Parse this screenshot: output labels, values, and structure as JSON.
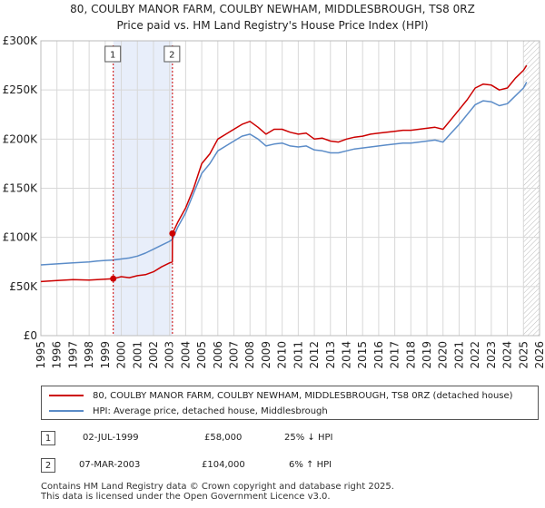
{
  "header": {
    "title_line1": "80, COULBY MANOR FARM, COULBY NEWHAM, MIDDLESBROUGH, TS8 0RZ",
    "title_line2": "Price paid vs. HM Land Registry's House Price Index (HPI)"
  },
  "colors": {
    "price_line": "#cc0000",
    "hpi_line": "#5b8cc8",
    "highlight": "#e8eefa",
    "grid": "#d8d8d8"
  },
  "chart_data": {
    "type": "line",
    "title": "80, COULBY MANOR FARM, COULBY NEWHAM, MIDDLESBROUGH, TS8 0RZ",
    "subtitle": "Price paid vs. HM Land Registry's House Price Index (HPI)",
    "xlim": [
      1995,
      2026
    ],
    "ylim": [
      0,
      300000
    ],
    "y_ticks": [
      0,
      50000,
      100000,
      150000,
      200000,
      250000,
      300000
    ],
    "y_tick_labels": [
      "£0",
      "£50K",
      "£100K",
      "£150K",
      "£200K",
      "£250K",
      "£300K"
    ],
    "x_ticks": [
      1995,
      1996,
      1997,
      1998,
      1999,
      2000,
      2001,
      2002,
      2003,
      2004,
      2005,
      2006,
      2007,
      2008,
      2009,
      2010,
      2011,
      2012,
      2013,
      2014,
      2015,
      2016,
      2017,
      2018,
      2019,
      2020,
      2021,
      2022,
      2023,
      2024,
      2025,
      2026
    ],
    "grid": true,
    "highlight_span": [
      1999.5,
      2003.18
    ],
    "hatched_from": 2025.0,
    "series": [
      {
        "name": "80, COULBY MANOR FARM, COULBY NEWHAM, MIDDLESBROUGH, TS8 0RZ (detached house)",
        "color": "#cc0000",
        "x": [
          1995,
          1996,
          1997,
          1998,
          1998.5,
          1999,
          1999.5,
          2000,
          2000.5,
          2001,
          2001.5,
          2002,
          2002.5,
          2003.0,
          2003.17,
          2003.18,
          2003.5,
          2004,
          2004.5,
          2005,
          2005.5,
          2006,
          2006.5,
          2007,
          2007.5,
          2008,
          2008.5,
          2009,
          2009.5,
          2010,
          2010.5,
          2011,
          2011.5,
          2012,
          2012.5,
          2013,
          2013.5,
          2014,
          2014.5,
          2015,
          2015.5,
          2016,
          2016.5,
          2017,
          2017.5,
          2018,
          2018.5,
          2019,
          2019.5,
          2020,
          2020.5,
          2021,
          2021.5,
          2022,
          2022.5,
          2023,
          2023.5,
          2024,
          2024.5,
          2025,
          2025.2
        ],
        "values": [
          55000,
          56000,
          57000,
          56500,
          57000,
          57500,
          58000,
          60000,
          59000,
          61000,
          62000,
          65000,
          70000,
          74000,
          75000,
          104000,
          115000,
          130000,
          150000,
          175000,
          185000,
          200000,
          205000,
          210000,
          215000,
          218000,
          212000,
          205000,
          210000,
          210000,
          207000,
          205000,
          206000,
          200000,
          201000,
          198000,
          197000,
          200000,
          202000,
          203000,
          205000,
          206000,
          207000,
          208000,
          209000,
          209000,
          210000,
          211000,
          212000,
          210000,
          220000,
          230000,
          240000,
          252000,
          256000,
          255000,
          250000,
          252000,
          262000,
          270000,
          275000
        ]
      },
      {
        "name": "HPI: Average price, detached house, Middlesbrough",
        "color": "#5b8cc8",
        "x": [
          1995,
          1996,
          1997,
          1998,
          1998.5,
          1999,
          1999.5,
          2000,
          2000.5,
          2001,
          2001.5,
          2002,
          2002.5,
          2003.0,
          2003.18,
          2003.5,
          2004,
          2004.5,
          2005,
          2005.5,
          2006,
          2006.5,
          2007,
          2007.5,
          2008,
          2008.5,
          2009,
          2009.5,
          2010,
          2010.5,
          2011,
          2011.5,
          2012,
          2012.5,
          2013,
          2013.5,
          2014,
          2014.5,
          2015,
          2015.5,
          2016,
          2016.5,
          2017,
          2017.5,
          2018,
          2018.5,
          2019,
          2019.5,
          2020,
          2020.5,
          2021,
          2021.5,
          2022,
          2022.5,
          2023,
          2023.5,
          2024,
          2024.5,
          2025,
          2025.2
        ],
        "values": [
          72000,
          73000,
          74000,
          75000,
          76000,
          76500,
          77000,
          78000,
          79000,
          81000,
          84000,
          88000,
          92000,
          96000,
          98000,
          110000,
          125000,
          145000,
          165000,
          175000,
          188000,
          193000,
          198000,
          203000,
          205000,
          200000,
          193000,
          195000,
          196000,
          193000,
          192000,
          193000,
          189000,
          188000,
          186000,
          186000,
          188000,
          190000,
          191000,
          192000,
          193000,
          194000,
          195000,
          196000,
          196000,
          197000,
          198000,
          199000,
          197000,
          206000,
          215000,
          225000,
          235000,
          239000,
          238000,
          234000,
          236000,
          244000,
          252000,
          258000
        ]
      }
    ],
    "markers": [
      {
        "label": "1",
        "x": 1999.5,
        "y": 58000
      },
      {
        "label": "2",
        "x": 2003.18,
        "y": 104000
      }
    ]
  },
  "legend": {
    "price_label": "80, COULBY MANOR FARM, COULBY NEWHAM, MIDDLESBROUGH, TS8 0RZ (detached house)",
    "hpi_label": "HPI: Average price, detached house, Middlesbrough"
  },
  "transactions": [
    {
      "num": "1",
      "date": "02-JUL-1999",
      "price": "£58,000",
      "hpi": "25% ↓ HPI"
    },
    {
      "num": "2",
      "date": "07-MAR-2003",
      "price": "£104,000",
      "hpi": "6% ↑ HPI"
    }
  ],
  "footer": {
    "line1": "Contains HM Land Registry data © Crown copyright and database right 2025.",
    "line2": "This data is licensed under the Open Government Licence v3.0."
  }
}
